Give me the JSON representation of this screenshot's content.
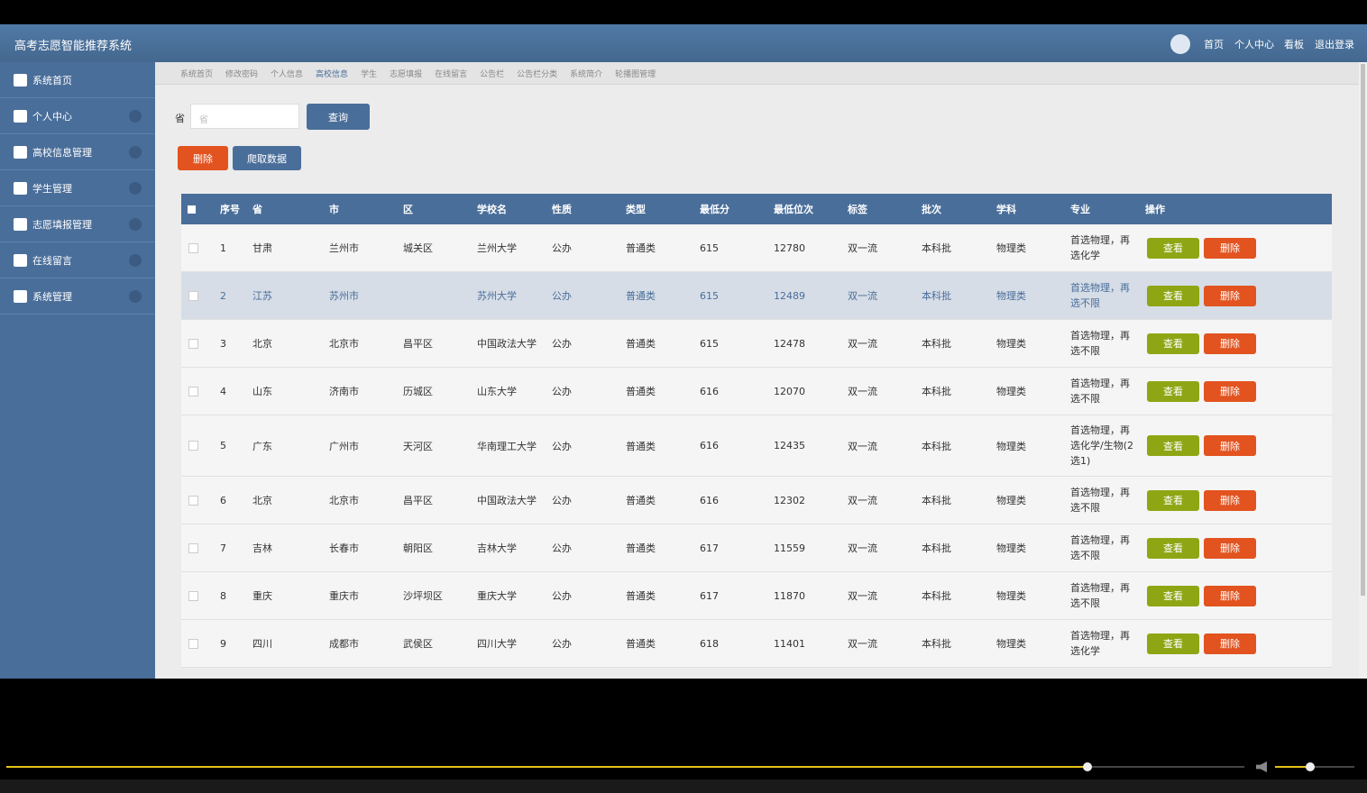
{
  "header": {
    "title": "高考志愿智能推荐系统",
    "nav": [
      "首页",
      "个人中心",
      "看板",
      "退出登录"
    ]
  },
  "sidebar": {
    "items": [
      "系统首页",
      "个人中心",
      "高校信息管理",
      "学生管理",
      "志愿填报管理",
      "在线留言",
      "系统管理"
    ]
  },
  "tabs": [
    "系统首页",
    "修改密码",
    "个人信息",
    "高校信息",
    "学生",
    "志愿填报",
    "在线留言",
    "公告栏",
    "公告栏分类",
    "系统简介",
    "轮播图管理"
  ],
  "search": {
    "label": "省",
    "placeholder": "省",
    "button": "查询"
  },
  "toolbar": {
    "delete": "删除",
    "crawl": "爬取数据"
  },
  "table": {
    "headers": [
      "序号",
      "省",
      "市",
      "区",
      "学校名",
      "性质",
      "类型",
      "最低分",
      "最低位次",
      "标签",
      "批次",
      "学科",
      "专业",
      "操作"
    ],
    "row_actions": [
      "查看",
      "删除"
    ],
    "rows": [
      [
        1,
        "甘肃",
        "兰州市",
        "城关区",
        "兰州大学",
        "公办",
        "普通类",
        615,
        12780,
        "双一流",
        "本科批",
        "物理类",
        "首选物理，再选化学"
      ],
      [
        2,
        "江苏",
        "苏州市",
        null,
        "苏州大学",
        "公办",
        "普通类",
        615,
        12489,
        "双一流",
        "本科批",
        "物理类",
        "首选物理，再选不限"
      ],
      [
        3,
        "北京",
        "北京市",
        "昌平区",
        "中国政法大学",
        "公办",
        "普通类",
        615,
        12478,
        "双一流",
        "本科批",
        "物理类",
        "首选物理，再选不限"
      ],
      [
        4,
        "山东",
        "济南市",
        "历城区",
        "山东大学",
        "公办",
        "普通类",
        616,
        12070,
        "双一流",
        "本科批",
        "物理类",
        "首选物理，再选不限"
      ],
      [
        5,
        "广东",
        "广州市",
        "天河区",
        "华南理工大学",
        "公办",
        "普通类",
        616,
        12435,
        "双一流",
        "本科批",
        "物理类",
        "首选物理，再选化学/生物(2选1)"
      ],
      [
        6,
        "北京",
        "北京市",
        "昌平区",
        "中国政法大学",
        "公办",
        "普通类",
        616,
        12302,
        "双一流",
        "本科批",
        "物理类",
        "首选物理，再选不限"
      ],
      [
        7,
        "吉林",
        "长春市",
        "朝阳区",
        "吉林大学",
        "公办",
        "普通类",
        617,
        11559,
        "双一流",
        "本科批",
        "物理类",
        "首选物理，再选不限"
      ],
      [
        8,
        "重庆",
        "重庆市",
        "沙坪坝区",
        "重庆大学",
        "公办",
        "普通类",
        617,
        11870,
        "双一流",
        "本科批",
        "物理类",
        "首选物理，再选不限"
      ],
      [
        9,
        "四川",
        "成都市",
        "武侯区",
        "四川大学",
        "公办",
        "普通类",
        618,
        11401,
        "双一流",
        "本科批",
        "物理类",
        "首选物理，再选化学"
      ]
    ]
  }
}
